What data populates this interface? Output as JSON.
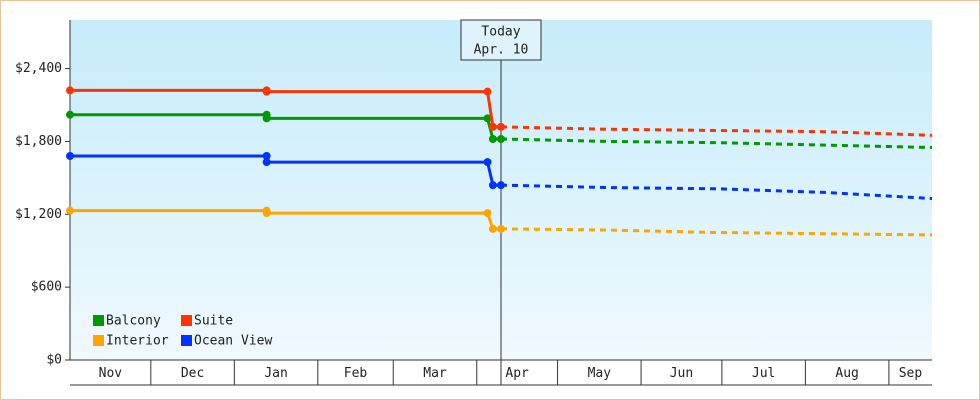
{
  "chart_data": {
    "type": "line",
    "x": [
      0,
      73,
      73,
      155,
      157,
      160,
      200,
      240,
      280,
      320
    ],
    "xlim": [
      0,
      320
    ],
    "xticks": [
      {
        "value": 0,
        "label": "Nov"
      },
      {
        "value": 30,
        "label": "Dec"
      },
      {
        "value": 61,
        "label": "Jan"
      },
      {
        "value": 92,
        "label": "Feb"
      },
      {
        "value": 120,
        "label": "Mar"
      },
      {
        "value": 151,
        "label": "Apr"
      },
      {
        "value": 181,
        "label": "May"
      },
      {
        "value": 212,
        "label": "Jun"
      },
      {
        "value": 242,
        "label": "Jul"
      },
      {
        "value": 273,
        "label": "Aug"
      },
      {
        "value": 304,
        "label": "Sep"
      }
    ],
    "ylim": [
      0,
      2800
    ],
    "yticks": [
      {
        "value": 0,
        "label": "$0"
      },
      {
        "value": 600,
        "label": "$600"
      },
      {
        "value": 1200,
        "label": "$1,200"
      },
      {
        "value": 1800,
        "label": "$1,800"
      },
      {
        "value": 2400,
        "label": "$2,400"
      }
    ],
    "annotation": {
      "x": 160,
      "lines": [
        "Today",
        "Apr. 10"
      ]
    },
    "legend": "lower left",
    "series": [
      {
        "name": "Balcony",
        "color": "#009900",
        "values": [
          2020,
          2020,
          1990,
          1990,
          1820,
          1820,
          1800,
          1790,
          1770,
          1750
        ]
      },
      {
        "name": "Suite",
        "color": "#ff3300",
        "values": [
          2220,
          2220,
          2210,
          2210,
          1920,
          1920,
          1900,
          1890,
          1880,
          1850
        ]
      },
      {
        "name": "Interior",
        "color": "#ffa500",
        "values": [
          1230,
          1230,
          1210,
          1210,
          1080,
          1080,
          1070,
          1050,
          1040,
          1030
        ]
      },
      {
        "name": "Ocean View",
        "color": "#0033ff",
        "values": [
          1680,
          1680,
          1630,
          1630,
          1440,
          1440,
          1420,
          1410,
          1380,
          1330
        ]
      }
    ]
  }
}
